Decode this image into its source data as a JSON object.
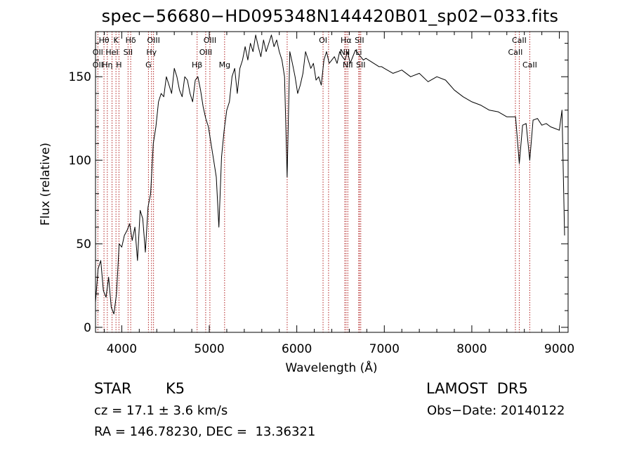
{
  "chart_data": {
    "type": "line",
    "title": "spec−56680−HD095348N144420B01_sp02−033.fits",
    "xlabel": "Wavelength (Å)",
    "ylabel": "Flux (relative)",
    "xlim": [
      3700,
      9100
    ],
    "ylim": [
      -3,
      177
    ],
    "xticks": [
      4000,
      5000,
      6000,
      7000,
      8000,
      9000
    ],
    "yticks": [
      0,
      50,
      100,
      150
    ],
    "grid": false,
    "series": [
      {
        "x": [
          3700,
          3730,
          3760,
          3790,
          3820,
          3850,
          3880,
          3910,
          3940,
          3970,
          4000,
          4030,
          4060,
          4090,
          4120,
          4150,
          4180,
          4210,
          4240,
          4270,
          4300,
          4330,
          4360,
          4390,
          4420,
          4450,
          4480,
          4510,
          4540,
          4570,
          4600,
          4630,
          4660,
          4690,
          4720,
          4750,
          4780,
          4810,
          4840,
          4870,
          4900,
          4930,
          4960,
          4990,
          5020,
          5050,
          5080,
          5110,
          5140,
          5170,
          5200,
          5230,
          5260,
          5290,
          5320,
          5350,
          5380,
          5410,
          5440,
          5470,
          5500,
          5530,
          5560,
          5590,
          5620,
          5650,
          5680,
          5710,
          5740,
          5770,
          5800,
          5830,
          5860,
          5890,
          5920,
          5950,
          5980,
          6010,
          6040,
          6070,
          6100,
          6130,
          6160,
          6190,
          6220,
          6250,
          6280,
          6310,
          6340,
          6370,
          6400,
          6430,
          6460,
          6490,
          6520,
          6550,
          6580,
          6610,
          6640,
          6670,
          6700,
          6730,
          6760,
          6790,
          6820,
          6850,
          6880,
          6910,
          6940,
          6970,
          7000,
          7100,
          7200,
          7300,
          7400,
          7500,
          7600,
          7700,
          7800,
          7900,
          8000,
          8100,
          8200,
          8300,
          8400,
          8500,
          8542,
          8580,
          8620,
          8662,
          8700,
          8750,
          8800,
          8850,
          8900,
          8950,
          9000,
          9030,
          9060
        ],
        "y": [
          15,
          35,
          40,
          22,
          18,
          30,
          12,
          8,
          20,
          50,
          48,
          55,
          58,
          62,
          52,
          60,
          40,
          70,
          65,
          45,
          72,
          80,
          110,
          120,
          135,
          140,
          138,
          150,
          145,
          140,
          155,
          150,
          142,
          138,
          150,
          148,
          140,
          135,
          148,
          150,
          142,
          132,
          125,
          120,
          110,
          100,
          90,
          60,
          102,
          118,
          130,
          135,
          150,
          155,
          140,
          155,
          160,
          168,
          160,
          170,
          165,
          175,
          168,
          162,
          172,
          165,
          170,
          175,
          168,
          172,
          165,
          160,
          150,
          90,
          165,
          158,
          150,
          140,
          145,
          152,
          165,
          160,
          155,
          158,
          148,
          150,
          145,
          160,
          165,
          158,
          160,
          162,
          158,
          165,
          162,
          160,
          165,
          158,
          162,
          166,
          164,
          162,
          160,
          161,
          160,
          159,
          158,
          157,
          156,
          156,
          155,
          152,
          154,
          150,
          152,
          147,
          150,
          148,
          142,
          138,
          135,
          133,
          130,
          129,
          126,
          126,
          98,
          121,
          122,
          100,
          124,
          125,
          121,
          122,
          120,
          119,
          118,
          130,
          55
        ]
      }
    ],
    "line_markers": [
      {
        "label": "Hθ",
        "x": 3797,
        "row": 0
      },
      {
        "label": "K",
        "x": 3934,
        "row": 0
      },
      {
        "label": "Hδ",
        "x": 4102,
        "row": 0
      },
      {
        "label": "OIII",
        "x": 4363,
        "row": 0
      },
      {
        "label": "OIII",
        "x": 5007,
        "row": 0
      },
      {
        "label": "OI",
        "x": 6300,
        "row": 0
      },
      {
        "label": "Hα",
        "x": 6563,
        "row": 0
      },
      {
        "label": "SII",
        "x": 6716,
        "row": 0
      },
      {
        "label": "CaII",
        "x": 8542,
        "row": 0
      },
      {
        "label": "OII",
        "x": 3727,
        "row": 1
      },
      {
        "label": "HeI",
        "x": 3889,
        "row": 1
      },
      {
        "label": "SII",
        "x": 4072,
        "row": 1
      },
      {
        "label": "Hγ",
        "x": 4340,
        "row": 1
      },
      {
        "label": "OIII",
        "x": 4959,
        "row": 1
      },
      {
        "label": "NII",
        "x": 6548,
        "row": 1
      },
      {
        "label": "Li",
        "x": 6708,
        "row": 1
      },
      {
        "label": "CaII",
        "x": 8498,
        "row": 1
      },
      {
        "label": "OII",
        "x": 3727,
        "row": 2
      },
      {
        "label": "Hη",
        "x": 3835,
        "row": 2
      },
      {
        "label": "H",
        "x": 3968,
        "row": 2
      },
      {
        "label": "G",
        "x": 4305,
        "row": 2
      },
      {
        "label": "Hβ",
        "x": 4861,
        "row": 2
      },
      {
        "label": "Mg",
        "x": 5175,
        "row": 2
      },
      {
        "label": "NII",
        "x": 6583,
        "row": 2
      },
      {
        "label": "SII",
        "x": 6731,
        "row": 2
      },
      {
        "label": "CaII",
        "x": 8662,
        "row": 2
      }
    ],
    "marker_lines_x": [
      3727,
      3797,
      3835,
      3889,
      3934,
      3968,
      4072,
      4102,
      4305,
      4340,
      4363,
      4861,
      4959,
      5007,
      5175,
      5890,
      6300,
      6363,
      6548,
      6563,
      6583,
      6708,
      6716,
      6731,
      8498,
      8542,
      8662
    ]
  },
  "footer": {
    "object_type": "STAR",
    "subclass": "K5",
    "survey": "LAMOST  DR5",
    "cz": "cz = 17.1 ± 3.6 km/s",
    "obs_date": "Obs−Date: 20140122",
    "coords": "RA = 146.78230, DEC =  13.36321"
  },
  "colors": {
    "line": "#000000",
    "marker": "#b22222",
    "axis": "#000000"
  }
}
